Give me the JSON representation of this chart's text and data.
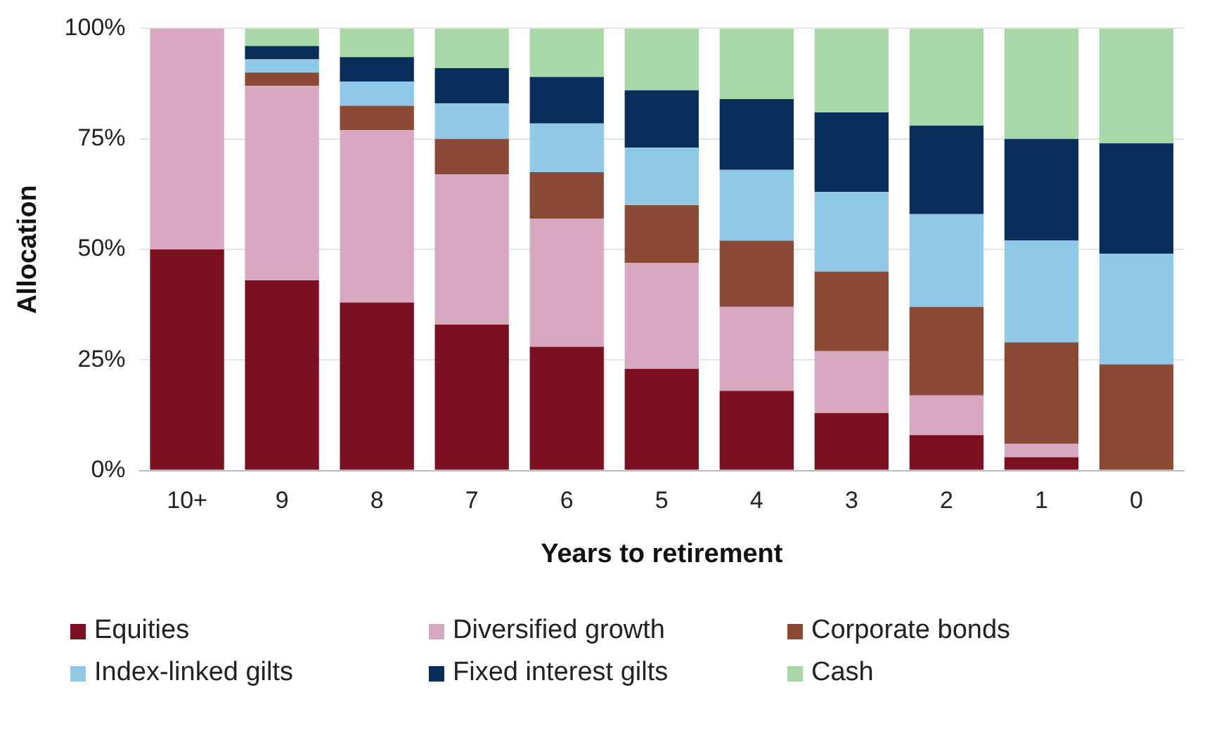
{
  "chart_data": {
    "type": "bar",
    "stacked": true,
    "xlabel": "Years to retirement",
    "ylabel": "Allocation",
    "categories": [
      "10+",
      "9",
      "8",
      "7",
      "6",
      "5",
      "4",
      "3",
      "2",
      "1",
      "0"
    ],
    "series": [
      {
        "name": "Equities",
        "color": "#7b1020",
        "values": [
          50,
          43,
          38,
          33,
          28,
          23,
          18,
          13,
          8,
          3,
          0
        ]
      },
      {
        "name": "Diversified growth",
        "color": "#d8a8c0",
        "values": [
          50,
          44,
          39,
          34,
          29,
          24,
          19,
          14,
          9,
          3,
          0
        ]
      },
      {
        "name": "Corporate bonds",
        "color": "#8b4a35",
        "values": [
          0,
          3,
          5.5,
          8,
          10.5,
          13,
          15,
          18,
          20,
          23,
          24
        ]
      },
      {
        "name": "Index-linked gilts",
        "color": "#90c8e8",
        "values": [
          0,
          3,
          5.5,
          8,
          11,
          13,
          16,
          18,
          21,
          23,
          25
        ]
      },
      {
        "name": "Fixed interest gilts",
        "color": "#0a2e5c",
        "values": [
          0,
          3,
          5.5,
          8,
          10.5,
          13,
          16,
          18,
          20,
          23,
          25
        ]
      },
      {
        "name": "Cash",
        "color": "#a8d8a8",
        "values": [
          0,
          4,
          6.5,
          9,
          11,
          14,
          16,
          19,
          22,
          25,
          26
        ]
      }
    ],
    "ylim": [
      0,
      100
    ],
    "yticks": [
      {
        "value": 0,
        "label": "0%"
      },
      {
        "value": 25,
        "label": "25%"
      },
      {
        "value": 50,
        "label": "50%"
      },
      {
        "value": 75,
        "label": "75%"
      },
      {
        "value": 100,
        "label": "100%"
      }
    ],
    "grid": "y",
    "legend": "bottom"
  }
}
